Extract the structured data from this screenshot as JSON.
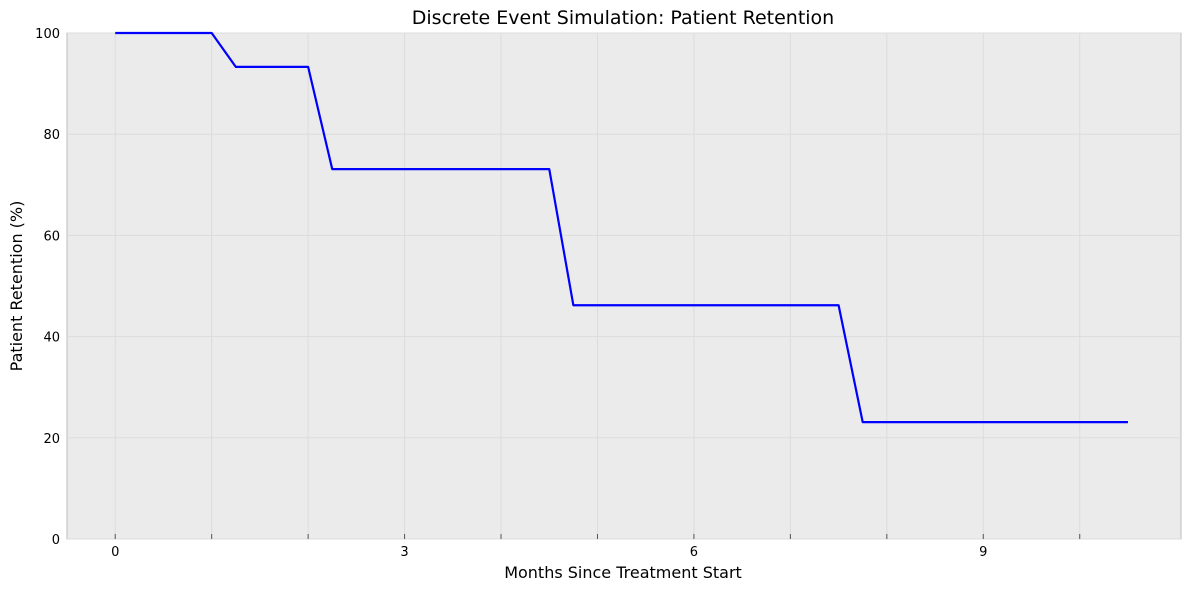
{
  "chart_data": {
    "type": "line",
    "title": "Discrete Event Simulation: Patient Retention",
    "xlabel": "Months Since Treatment Start",
    "ylabel": "Patient Retention (%)",
    "xlim": [
      -0.5,
      11.05
    ],
    "ylim": [
      0,
      100
    ],
    "x_ticks": [
      0,
      1,
      2,
      3,
      4,
      5,
      6,
      7,
      8,
      9,
      10
    ],
    "x_tick_labels": [
      "0",
      "",
      "",
      "3",
      "",
      "",
      "6",
      "",
      "",
      "9",
      ""
    ],
    "y_ticks": [
      0,
      20,
      40,
      60,
      80,
      100
    ],
    "y_tick_labels": [
      "0",
      "20",
      "40",
      "60",
      "80",
      "100"
    ],
    "grid": true,
    "series": [
      {
        "color": "#0000ff",
        "x": [
          0,
          1.0,
          1.25,
          2.0,
          2.25,
          4.5,
          4.75,
          7.5,
          7.75,
          10.5
        ],
        "y": [
          100,
          100,
          93.3,
          93.3,
          73.1,
          73.1,
          46.2,
          46.2,
          23.1,
          23.1
        ]
      }
    ],
    "colors": {
      "plot_background": "#ebebeb",
      "grid": "#dcdcdc",
      "line": "#0000ff"
    }
  }
}
